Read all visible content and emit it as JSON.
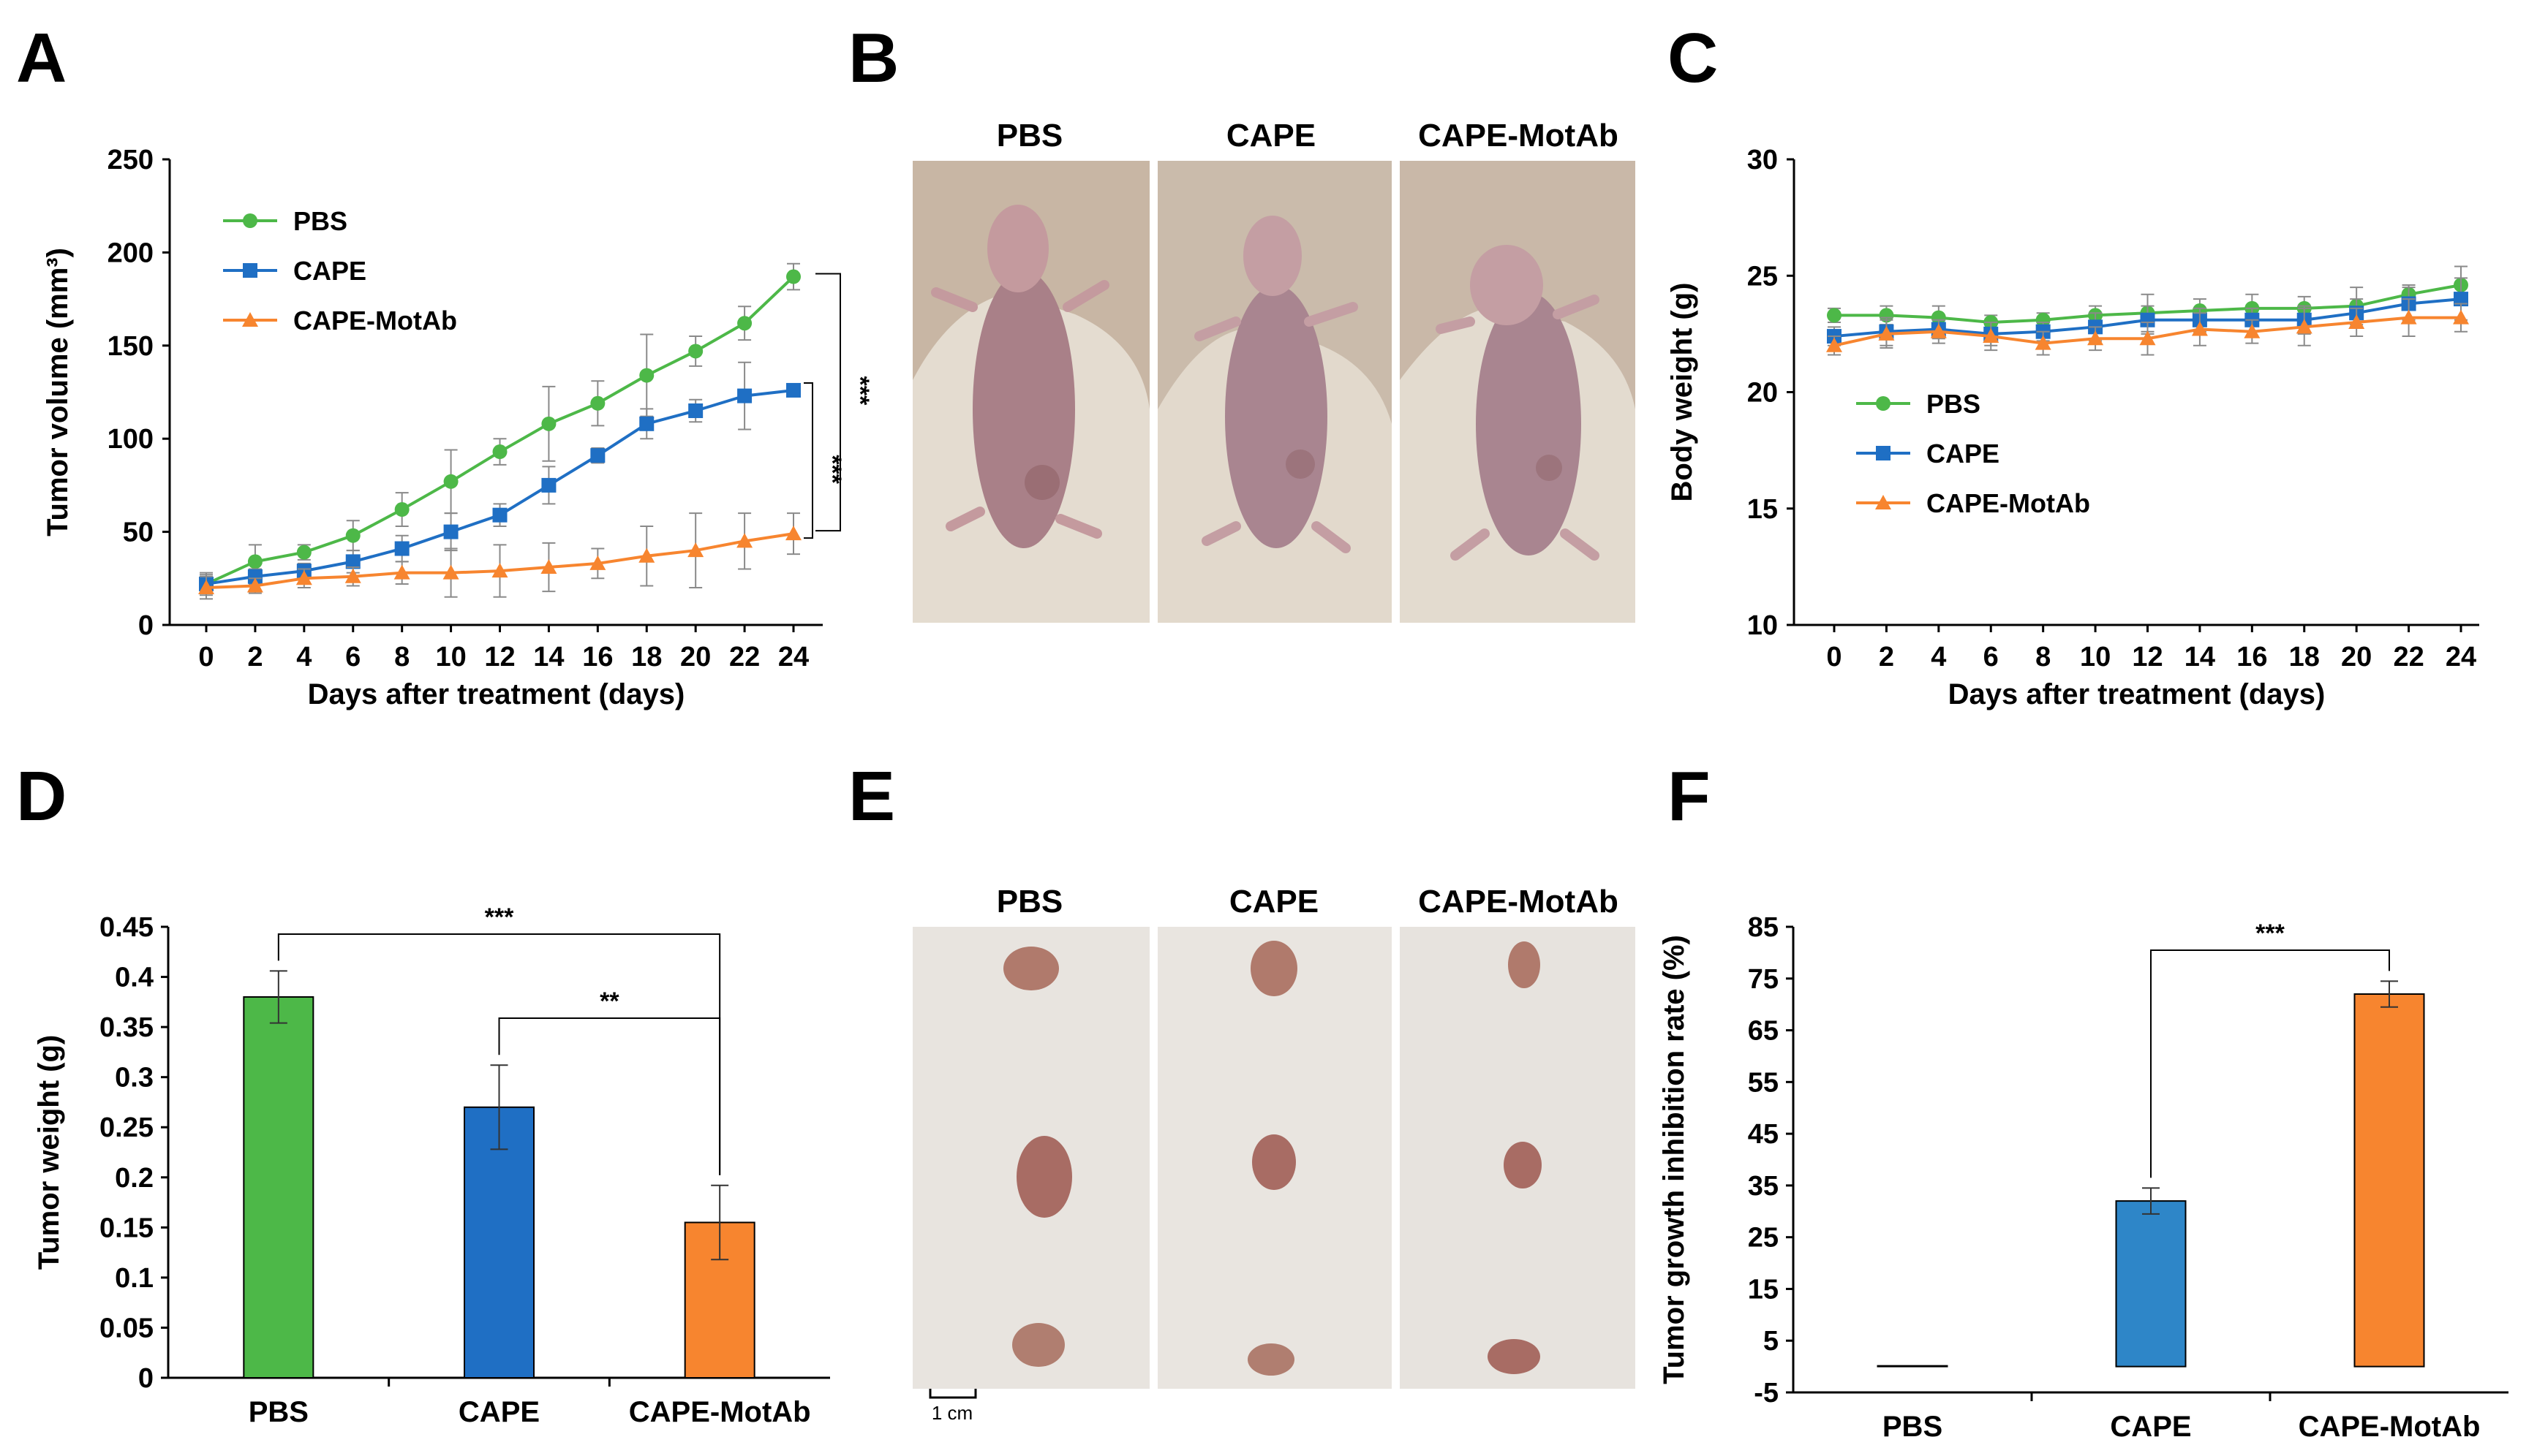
{
  "panels": {
    "A": "A",
    "B": "B",
    "C": "C",
    "D": "D",
    "E": "E",
    "F": "F"
  },
  "photo_labels": {
    "B": [
      "PBS",
      "CAPE",
      "CAPE-MotAb"
    ],
    "E": [
      "PBS",
      "CAPE",
      "CAPE-MotAb"
    ],
    "scale_bar": "1 cm"
  },
  "colors": {
    "PBS": "#4db848",
    "CAPE": "#1f6fc4",
    "CAPE-MotAb": "#f7852f",
    "F_PBS": "#8bc34a",
    "F_CAPE": "#2e86c8"
  },
  "chart_data": [
    {
      "id": "A",
      "type": "line",
      "xlabel": "Days after treatment (days)",
      "ylabel": "Tumor volume (mm³)",
      "ylim": [
        0,
        250
      ],
      "yticks": [
        "0",
        "50",
        "100",
        "150",
        "200",
        "250"
      ],
      "x": [
        0,
        2,
        4,
        6,
        8,
        10,
        12,
        14,
        16,
        18,
        20,
        22,
        24
      ],
      "xticks": [
        "0",
        "2",
        "4",
        "6",
        "8",
        "10",
        "12",
        "14",
        "16",
        "18",
        "20",
        "22",
        "24"
      ],
      "series": [
        {
          "name": "PBS",
          "marker": "circle",
          "values": [
            22,
            34,
            39,
            48,
            62,
            77,
            93,
            108,
            119,
            134,
            147,
            162,
            187
          ],
          "errors": [
            6,
            9,
            4,
            8,
            9,
            17,
            7,
            20,
            12,
            22,
            8,
            9,
            7
          ]
        },
        {
          "name": "CAPE",
          "marker": "square",
          "values": [
            22,
            26,
            29,
            34,
            41,
            50,
            59,
            75,
            91,
            108,
            115,
            123,
            126
          ],
          "errors": [
            5,
            4,
            4,
            6,
            7,
            10,
            6,
            10,
            4,
            8,
            6,
            18,
            3
          ]
        },
        {
          "name": "CAPE-MotAb",
          "marker": "triangle",
          "values": [
            20,
            21,
            25,
            26,
            28,
            28,
            29,
            31,
            33,
            37,
            40,
            45,
            49
          ],
          "errors": [
            6,
            4,
            5,
            5,
            6,
            13,
            14,
            13,
            8,
            16,
            20,
            15,
            11
          ]
        }
      ],
      "significance": [
        "***",
        "***"
      ]
    },
    {
      "id": "C",
      "type": "line",
      "xlabel": "Days after treatment (days)",
      "ylabel": "Body weight (g)",
      "ylim": [
        10,
        30
      ],
      "yticks": [
        "10",
        "15",
        "20",
        "25",
        "30"
      ],
      "x": [
        0,
        2,
        4,
        6,
        8,
        10,
        12,
        14,
        16,
        18,
        20,
        22,
        24
      ],
      "xticks": [
        "0",
        "2",
        "4",
        "6",
        "8",
        "10",
        "12",
        "14",
        "16",
        "18",
        "20",
        "22",
        "24"
      ],
      "series": [
        {
          "name": "PBS",
          "marker": "circle",
          "values": [
            23.3,
            23.3,
            23.2,
            23.0,
            23.1,
            23.3,
            23.4,
            23.5,
            23.6,
            23.6,
            23.7,
            24.2,
            24.6
          ],
          "errors": [
            0.3,
            0.4,
            0.5,
            0.3,
            0.3,
            0.4,
            0.8,
            0.5,
            0.6,
            0.5,
            0.8,
            0.4,
            0.8
          ]
        },
        {
          "name": "CAPE",
          "marker": "square",
          "values": [
            22.4,
            22.6,
            22.7,
            22.5,
            22.6,
            22.8,
            23.1,
            23.1,
            23.1,
            23.1,
            23.4,
            23.8,
            24.0
          ],
          "errors": [
            0.4,
            0.6,
            0.4,
            0.5,
            0.4,
            0.6,
            0.6,
            0.5,
            0.5,
            0.6,
            0.6,
            0.7,
            0.9
          ]
        },
        {
          "name": "CAPE-MotAb",
          "marker": "triangle",
          "values": [
            22.0,
            22.5,
            22.6,
            22.4,
            22.1,
            22.3,
            22.3,
            22.7,
            22.6,
            22.8,
            23.0,
            23.2,
            23.2
          ],
          "errors": [
            0.4,
            0.6,
            0.5,
            0.6,
            0.5,
            0.5,
            0.7,
            0.7,
            0.5,
            0.8,
            0.6,
            0.8,
            0.6
          ]
        }
      ]
    },
    {
      "id": "D",
      "type": "bar",
      "ylabel": "Tumor weight (g)",
      "ylim": [
        0,
        0.45
      ],
      "yticks": [
        "0",
        "0.05",
        "0.1",
        "0.15",
        "0.2",
        "0.25",
        "0.3",
        "0.35",
        "0.4",
        "0.45"
      ],
      "categories": [
        "PBS",
        "CAPE",
        "CAPE-MotAb"
      ],
      "values": [
        0.38,
        0.27,
        0.155
      ],
      "errors": [
        0.026,
        0.042,
        0.037
      ],
      "significance": [
        "***",
        "**"
      ]
    },
    {
      "id": "F",
      "type": "bar",
      "ylabel": "Tumor growth inhibition rate (%)",
      "ylim": [
        -5,
        85
      ],
      "yticks": [
        "-5",
        "5",
        "15",
        "25",
        "35",
        "45",
        "55",
        "65",
        "75",
        "85"
      ],
      "categories": [
        "PBS",
        "CAPE",
        "CAPE-MotAb"
      ],
      "values": [
        0,
        32,
        72
      ],
      "errors": [
        0,
        2.5,
        2.5
      ],
      "significance": [
        "***"
      ]
    }
  ]
}
